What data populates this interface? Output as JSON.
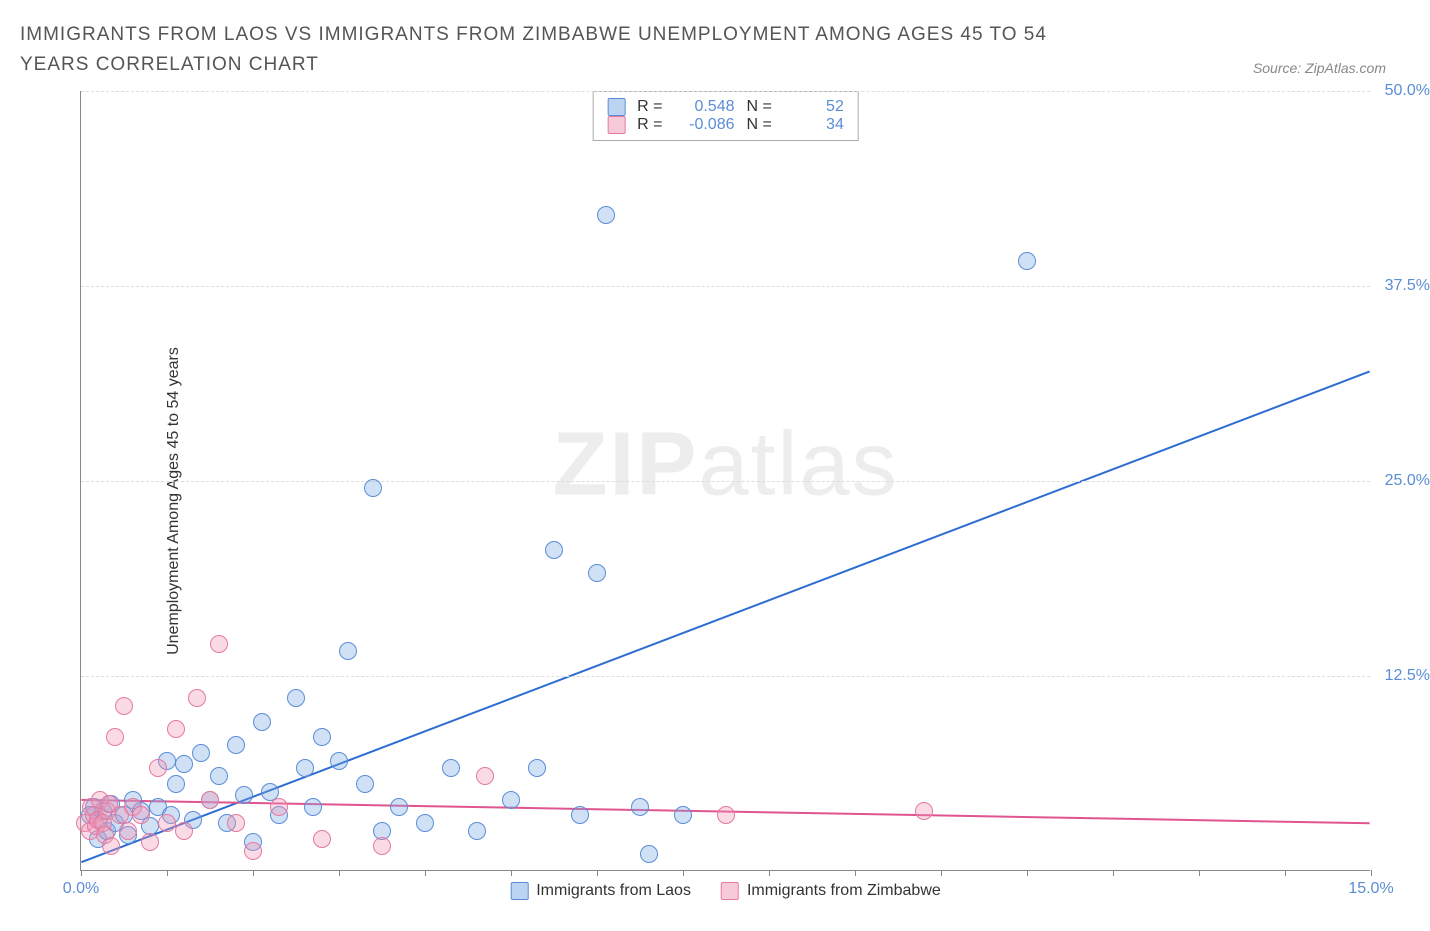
{
  "title": "IMMIGRANTS FROM LAOS VS IMMIGRANTS FROM ZIMBABWE UNEMPLOYMENT AMONG AGES 45 TO 54 YEARS CORRELATION CHART",
  "source": "Source: ZipAtlas.com",
  "watermark_bold": "ZIP",
  "watermark_light": "atlas",
  "ylabel": "Unemployment Among Ages 45 to 54 years",
  "chart": {
    "type": "scatter",
    "background_color": "#ffffff",
    "grid_color": "#dddddd",
    "grid_style": "dashed",
    "axis_color": "#888888",
    "x_axis": {
      "min": 0,
      "max": 15,
      "ticks": [
        0,
        1,
        2,
        3,
        4,
        5,
        6,
        7,
        8,
        9,
        10,
        11,
        12,
        13,
        14,
        15
      ],
      "label_min": "0.0%",
      "label_max": "15.0%"
    },
    "y_axis": {
      "min": 0,
      "max": 50,
      "ticks": [
        12.5,
        25.0,
        37.5,
        50.0
      ],
      "labels": [
        "12.5%",
        "25.0%",
        "37.5%",
        "50.0%"
      ]
    },
    "series": [
      {
        "name": "Immigrants from Laos",
        "color": "#5b8dd6",
        "fill": "rgba(120,170,230,0.35)",
        "marker_radius_px": 9,
        "correlation_r": "0.548",
        "n": "52",
        "trend": {
          "x1": 0,
          "y1": 0.5,
          "x2": 15,
          "y2": 32.0,
          "color": "#2d6cd1",
          "width": 2
        },
        "points": [
          [
            0.1,
            3.5
          ],
          [
            0.15,
            4.0
          ],
          [
            0.2,
            2.0
          ],
          [
            0.2,
            3.2
          ],
          [
            0.25,
            3.8
          ],
          [
            0.3,
            2.5
          ],
          [
            0.35,
            4.2
          ],
          [
            0.4,
            3.0
          ],
          [
            0.5,
            3.5
          ],
          [
            0.55,
            2.2
          ],
          [
            0.6,
            4.5
          ],
          [
            0.7,
            3.8
          ],
          [
            0.8,
            2.8
          ],
          [
            0.9,
            4.0
          ],
          [
            1.0,
            7.0
          ],
          [
            1.05,
            3.5
          ],
          [
            1.1,
            5.5
          ],
          [
            1.2,
            6.8
          ],
          [
            1.3,
            3.2
          ],
          [
            1.4,
            7.5
          ],
          [
            1.5,
            4.5
          ],
          [
            1.6,
            6.0
          ],
          [
            1.7,
            3.0
          ],
          [
            1.8,
            8.0
          ],
          [
            1.9,
            4.8
          ],
          [
            2.0,
            1.8
          ],
          [
            2.1,
            9.5
          ],
          [
            2.2,
            5.0
          ],
          [
            2.3,
            3.5
          ],
          [
            2.5,
            11.0
          ],
          [
            2.6,
            6.5
          ],
          [
            2.7,
            4.0
          ],
          [
            2.8,
            8.5
          ],
          [
            3.0,
            7.0
          ],
          [
            3.1,
            14.0
          ],
          [
            3.3,
            5.5
          ],
          [
            3.4,
            24.5
          ],
          [
            3.5,
            2.5
          ],
          [
            3.7,
            4.0
          ],
          [
            4.0,
            3.0
          ],
          [
            4.3,
            6.5
          ],
          [
            4.6,
            2.5
          ],
          [
            5.0,
            4.5
          ],
          [
            5.3,
            6.5
          ],
          [
            5.5,
            20.5
          ],
          [
            5.8,
            3.5
          ],
          [
            6.0,
            19.0
          ],
          [
            6.1,
            42.0
          ],
          [
            6.5,
            4.0
          ],
          [
            6.6,
            1.0
          ],
          [
            7.0,
            3.5
          ],
          [
            11.0,
            39.0
          ]
        ]
      },
      {
        "name": "Immigrants from Zimbabwe",
        "color": "#e47aa0",
        "fill": "rgba(240,150,180,0.35)",
        "marker_radius_px": 9,
        "correlation_r": "-0.086",
        "n": "34",
        "trend": {
          "x1": 0,
          "y1": 4.5,
          "x2": 15,
          "y2": 3.0,
          "color": "#e05590",
          "width": 2
        },
        "points": [
          [
            0.05,
            3.0
          ],
          [
            0.1,
            2.5
          ],
          [
            0.12,
            4.0
          ],
          [
            0.15,
            3.5
          ],
          [
            0.18,
            2.8
          ],
          [
            0.2,
            3.2
          ],
          [
            0.22,
            4.5
          ],
          [
            0.25,
            3.0
          ],
          [
            0.28,
            2.2
          ],
          [
            0.3,
            3.8
          ],
          [
            0.32,
            4.2
          ],
          [
            0.35,
            1.5
          ],
          [
            0.4,
            8.5
          ],
          [
            0.45,
            3.5
          ],
          [
            0.5,
            10.5
          ],
          [
            0.55,
            2.5
          ],
          [
            0.6,
            4.0
          ],
          [
            0.7,
            3.5
          ],
          [
            0.8,
            1.8
          ],
          [
            0.9,
            6.5
          ],
          [
            1.0,
            3.0
          ],
          [
            1.1,
            9.0
          ],
          [
            1.2,
            2.5
          ],
          [
            1.35,
            11.0
          ],
          [
            1.5,
            4.5
          ],
          [
            1.6,
            14.5
          ],
          [
            1.8,
            3.0
          ],
          [
            2.0,
            1.2
          ],
          [
            2.3,
            4.0
          ],
          [
            2.8,
            2.0
          ],
          [
            3.5,
            1.5
          ],
          [
            4.7,
            6.0
          ],
          [
            7.5,
            3.5
          ],
          [
            9.8,
            3.8
          ]
        ]
      }
    ]
  },
  "legend_top": {
    "r_label": "R =",
    "n_label": "N ="
  },
  "legend_bottom": {
    "blue": "Immigrants from Laos",
    "pink": "Immigrants from Zimbabwe"
  }
}
